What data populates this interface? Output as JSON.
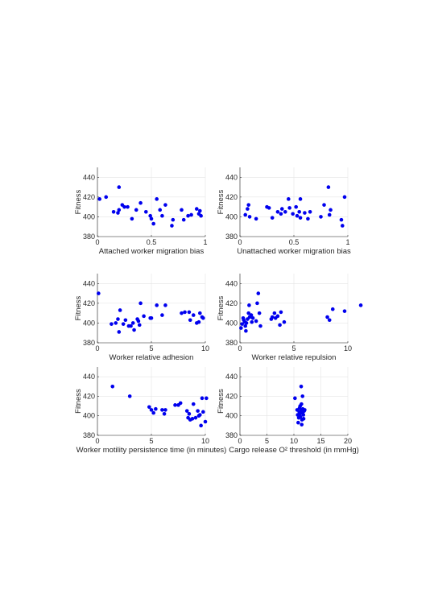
{
  "chart_data": [
    {
      "type": "scatter",
      "xlabel": "Attached worker migration bias",
      "ylabel": "Fitness",
      "xlim": [
        0,
        1
      ],
      "ylim": [
        380,
        450
      ],
      "xticks": [
        0,
        0.5,
        1
      ],
      "xtick_labels": [
        "0",
        "0.5",
        "1"
      ],
      "yticks": [
        380,
        400,
        420,
        440
      ],
      "ytick_labels": [
        "380",
        "400",
        "420",
        "440"
      ],
      "grid": true,
      "color": "#0000ee",
      "points": [
        [
          0.02,
          418
        ],
        [
          0.08,
          420
        ],
        [
          0.15,
          405
        ],
        [
          0.19,
          404
        ],
        [
          0.2,
          407
        ],
        [
          0.2,
          430
        ],
        [
          0.23,
          412
        ],
        [
          0.25,
          410
        ],
        [
          0.28,
          410
        ],
        [
          0.32,
          398
        ],
        [
          0.36,
          407
        ],
        [
          0.4,
          414
        ],
        [
          0.45,
          405
        ],
        [
          0.49,
          401
        ],
        [
          0.5,
          398
        ],
        [
          0.52,
          393
        ],
        [
          0.55,
          418
        ],
        [
          0.58,
          407
        ],
        [
          0.6,
          401
        ],
        [
          0.63,
          412
        ],
        [
          0.69,
          391
        ],
        [
          0.7,
          397
        ],
        [
          0.78,
          407
        ],
        [
          0.8,
          397
        ],
        [
          0.84,
          401
        ],
        [
          0.87,
          402
        ],
        [
          0.92,
          408
        ],
        [
          0.94,
          403
        ],
        [
          0.95,
          406
        ],
        [
          0.96,
          401
        ]
      ]
    },
    {
      "type": "scatter",
      "xlabel": "Unattached worker migration bias",
      "ylabel": "Fitness",
      "xlim": [
        0,
        1
      ],
      "ylim": [
        380,
        450
      ],
      "xticks": [
        0,
        0.5,
        1
      ],
      "xtick_labels": [
        "0",
        "0.5",
        "1"
      ],
      "yticks": [
        380,
        400,
        420,
        440
      ],
      "ytick_labels": [
        "380",
        "400",
        "420",
        "440"
      ],
      "grid": true,
      "color": "#0000ee",
      "points": [
        [
          0.05,
          402
        ],
        [
          0.07,
          408
        ],
        [
          0.08,
          412
        ],
        [
          0.09,
          400
        ],
        [
          0.15,
          398
        ],
        [
          0.25,
          410
        ],
        [
          0.27,
          409
        ],
        [
          0.3,
          399
        ],
        [
          0.35,
          405
        ],
        [
          0.38,
          403
        ],
        [
          0.39,
          408
        ],
        [
          0.42,
          405
        ],
        [
          0.45,
          418
        ],
        [
          0.46,
          409
        ],
        [
          0.49,
          403
        ],
        [
          0.52,
          410
        ],
        [
          0.53,
          401
        ],
        [
          0.55,
          405
        ],
        [
          0.56,
          399
        ],
        [
          0.56,
          418
        ],
        [
          0.6,
          404
        ],
        [
          0.63,
          398
        ],
        [
          0.65,
          405
        ],
        [
          0.75,
          400
        ],
        [
          0.78,
          412
        ],
        [
          0.82,
          430
        ],
        [
          0.83,
          402
        ],
        [
          0.84,
          407
        ],
        [
          0.94,
          397
        ],
        [
          0.95,
          391
        ],
        [
          0.97,
          420
        ]
      ]
    },
    {
      "type": "scatter",
      "xlabel": "Worker relative adhesion",
      "ylabel": "Fitness",
      "xlim": [
        0,
        10
      ],
      "ylim": [
        380,
        450
      ],
      "xticks": [
        0,
        5,
        10
      ],
      "xtick_labels": [
        "0",
        "5",
        "10"
      ],
      "yticks": [
        380,
        400,
        420,
        440
      ],
      "ytick_labels": [
        "380",
        "400",
        "420",
        "440"
      ],
      "grid": true,
      "color": "#0000ee",
      "points": [
        [
          0.1,
          430
        ],
        [
          1.3,
          399
        ],
        [
          1.7,
          400
        ],
        [
          1.9,
          404
        ],
        [
          2,
          391
        ],
        [
          2.1,
          413
        ],
        [
          2.4,
          399
        ],
        [
          2.6,
          403
        ],
        [
          2.9,
          397
        ],
        [
          3.1,
          397
        ],
        [
          3.3,
          400
        ],
        [
          3.4,
          393
        ],
        [
          3.7,
          404
        ],
        [
          3.8,
          402
        ],
        [
          3.9,
          398
        ],
        [
          4,
          420
        ],
        [
          4.3,
          407
        ],
        [
          4.9,
          405
        ],
        [
          5,
          405
        ],
        [
          5.5,
          418
        ],
        [
          6,
          408
        ],
        [
          6.3,
          418
        ],
        [
          7.8,
          410
        ],
        [
          8.1,
          411
        ],
        [
          8.5,
          411
        ],
        [
          8.6,
          403
        ],
        [
          8.9,
          408
        ],
        [
          9.2,
          400
        ],
        [
          9.4,
          401
        ],
        [
          9.5,
          410
        ],
        [
          9.7,
          406
        ],
        [
          9.8,
          405
        ]
      ]
    },
    {
      "type": "scatter",
      "xlabel": "Worker relative repulsion",
      "ylabel": "Fitness",
      "xlim": [
        0,
        10
      ],
      "ylim": [
        380,
        450
      ],
      "xticks": [
        0,
        5,
        10
      ],
      "xtick_labels": [
        "0",
        "5",
        "10"
      ],
      "yticks": [
        380,
        400,
        420,
        440
      ],
      "ytick_labels": [
        "380",
        "400",
        "420",
        "440"
      ],
      "grid": true,
      "color": "#0000ee",
      "points": [
        [
          0.1,
          395
        ],
        [
          0.2,
          399
        ],
        [
          0.3,
          405
        ],
        [
          0.35,
          403
        ],
        [
          0.45,
          401
        ],
        [
          0.5,
          397
        ],
        [
          0.55,
          392
        ],
        [
          0.6,
          400
        ],
        [
          0.7,
          404
        ],
        [
          0.8,
          410
        ],
        [
          0.85,
          418
        ],
        [
          0.9,
          406
        ],
        [
          1.05,
          408
        ],
        [
          1.1,
          401
        ],
        [
          1.2,
          405
        ],
        [
          1.5,
          402
        ],
        [
          1.6,
          420
        ],
        [
          1.7,
          430
        ],
        [
          1.8,
          410
        ],
        [
          1.9,
          397
        ],
        [
          2.9,
          404
        ],
        [
          3,
          406
        ],
        [
          3.2,
          410
        ],
        [
          3.3,
          405
        ],
        [
          3.5,
          407
        ],
        [
          3.7,
          398
        ],
        [
          3.8,
          411
        ],
        [
          4.1,
          401
        ],
        [
          8.1,
          406
        ],
        [
          8.3,
          403
        ],
        [
          8.6,
          414
        ],
        [
          9.7,
          412
        ],
        [
          11.2,
          418
        ]
      ]
    },
    {
      "type": "scatter",
      "xlabel": "Worker motility persistence time (in minutes)",
      "ylabel": "Fitness",
      "xlim": [
        0,
        10
      ],
      "ylim": [
        380,
        450
      ],
      "xticks": [
        0,
        5,
        10
      ],
      "xtick_labels": [
        "0",
        "5",
        "10"
      ],
      "yticks": [
        380,
        400,
        420,
        440
      ],
      "ytick_labels": [
        "380",
        "400",
        "420",
        "440"
      ],
      "grid": true,
      "color": "#0000ee",
      "points": [
        [
          1.4,
          430
        ],
        [
          3,
          420
        ],
        [
          4.8,
          409
        ],
        [
          5,
          406
        ],
        [
          5.2,
          403
        ],
        [
          5.4,
          407
        ],
        [
          6,
          406
        ],
        [
          6.2,
          402
        ],
        [
          6.3,
          406
        ],
        [
          7.2,
          411
        ],
        [
          7.5,
          411
        ],
        [
          7.7,
          413
        ],
        [
          8.3,
          405
        ],
        [
          8.4,
          398
        ],
        [
          8.5,
          402
        ],
        [
          8.6,
          396
        ],
        [
          8.8,
          397
        ],
        [
          8.9,
          412
        ],
        [
          9.1,
          398
        ],
        [
          9.3,
          405
        ],
        [
          9.4,
          400
        ],
        [
          9.5,
          401
        ],
        [
          9.6,
          390
        ],
        [
          9.7,
          418
        ],
        [
          9.8,
          404
        ],
        [
          10.0,
          394
        ],
        [
          10.1,
          418
        ]
      ]
    },
    {
      "type": "scatter",
      "xlabel": "Cargo release O² threshold (in mmHg)",
      "ylabel": "Fitness",
      "xlim": [
        0,
        20
      ],
      "ylim": [
        380,
        450
      ],
      "xticks": [
        0,
        5,
        10,
        15,
        20
      ],
      "xtick_labels": [
        "0",
        "5",
        "10",
        "15",
        "20"
      ],
      "yticks": [
        380,
        400,
        420,
        440
      ],
      "ytick_labels": [
        "380",
        "400",
        "420",
        "440"
      ],
      "grid": true,
      "color": "#0000ee",
      "points": [
        [
          10.2,
          418
        ],
        [
          10.6,
          406
        ],
        [
          10.7,
          401
        ],
        [
          10.8,
          393
        ],
        [
          10.9,
          398
        ],
        [
          11,
          404
        ],
        [
          11.05,
          408
        ],
        [
          11.1,
          402
        ],
        [
          11.15,
          410
        ],
        [
          11.2,
          399
        ],
        [
          11.3,
          405
        ],
        [
          11.35,
          430
        ],
        [
          11.4,
          412
        ],
        [
          11.45,
          391
        ],
        [
          11.5,
          396
        ],
        [
          11.55,
          403
        ],
        [
          11.6,
          420
        ],
        [
          11.65,
          407
        ],
        [
          11.7,
          404
        ],
        [
          11.75,
          401
        ],
        [
          11.8,
          397
        ],
        [
          11.9,
          405
        ],
        [
          12,
          406
        ]
      ]
    }
  ]
}
